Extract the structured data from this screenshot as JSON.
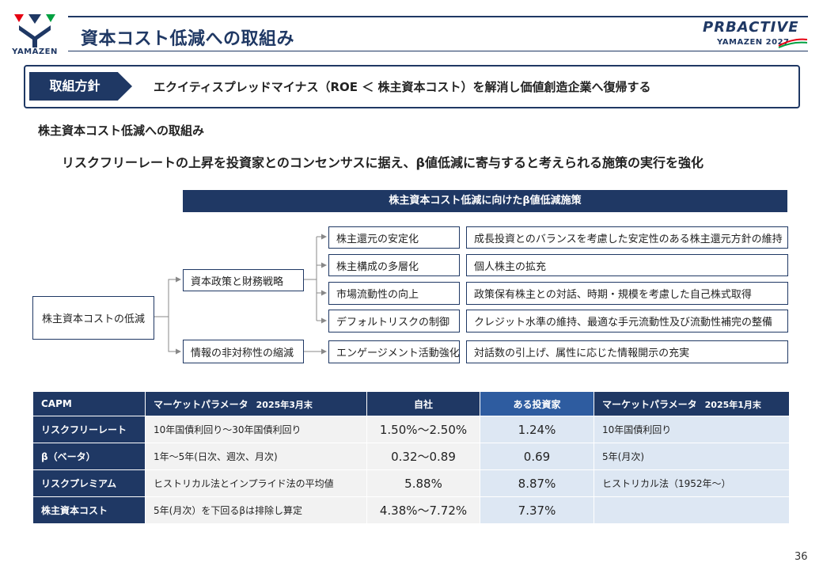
{
  "header": {
    "logo_text": "YAMAZEN",
    "title": "資本コスト低減への取組み",
    "plan_logo_word": "PRBACTIVE",
    "plan_logo_sub": "YAMAZEN 2027"
  },
  "policy": {
    "tag": "取組方針",
    "text": "エクイティスプレッドマイナス（ROE ＜ 株主資本コスト）を解消し価値創造企業へ復帰する"
  },
  "section": {
    "heading": "株主資本コスト低減への取組み",
    "subheading": "リスクフリーレートの上昇を投資家とのコンセンサスに据え、β値低減に寄与すると考えられる施策の実行を強化"
  },
  "diagram": {
    "banner": "株主資本コスト低減に向けたβ値低減施策",
    "root": "株主資本コストの低減",
    "branches": [
      {
        "label": "資本政策と財務戦略",
        "items": [
          {
            "measure": "株主還元の安定化",
            "detail": "成長投資とのバランスを考慮した安定性のある株主還元方針の維持"
          },
          {
            "measure": "株主構成の多層化",
            "detail": "個人株主の拡充"
          },
          {
            "measure": "市場流動性の向上",
            "detail": "政策保有株主との対話、時期・規模を考慮した自己株式取得"
          },
          {
            "measure": "デフォルトリスクの制御",
            "detail": "クレジット水準の維持、最適な手元流動性及び流動性補完の整備"
          }
        ]
      },
      {
        "label": "情報の非対称性の縮減",
        "items": [
          {
            "measure": "エンゲージメント活動強化",
            "detail": "対話数の引上げ、属性に応じた情報開示の充実"
          }
        ]
      }
    ]
  },
  "table": {
    "headers": {
      "capm": "CAPM",
      "market_param": "マーケットパラメータ",
      "market_param_date": "2025年3月末",
      "company": "自社",
      "investor": "ある投資家",
      "market_param2": "マーケットパラメータ",
      "market_param2_date": "2025年1月末"
    },
    "rows": [
      {
        "label": "リスクフリーレート",
        "market": "10年国債利回り～30年国債利回り",
        "company": "1.50%～2.50%",
        "investor": "1.24%",
        "market2": "10年国債利回り"
      },
      {
        "label": "β（ベータ）",
        "market": "1年～5年(日次、週次、月次)",
        "company": "0.32～0.89",
        "investor": "0.69",
        "market2": "5年(月次)"
      },
      {
        "label": "リスクプレミアム",
        "market": "ヒストリカル法とインプライド法の平均値",
        "company": "5.88%",
        "investor": "8.87%",
        "market2": "ヒストリカル法（1952年～）"
      },
      {
        "label": "株主資本コスト",
        "market": "5年(月次）を下回るβは排除し算定",
        "company": "4.38%～7.72%",
        "investor": "7.37%",
        "market2": ""
      }
    ]
  },
  "page_number": "36",
  "colors": {
    "navy": "#1f3864",
    "investor_blue": "#2e5ca0",
    "cell_gray": "#f2f2f2",
    "cell_blue": "#dde7f3"
  }
}
